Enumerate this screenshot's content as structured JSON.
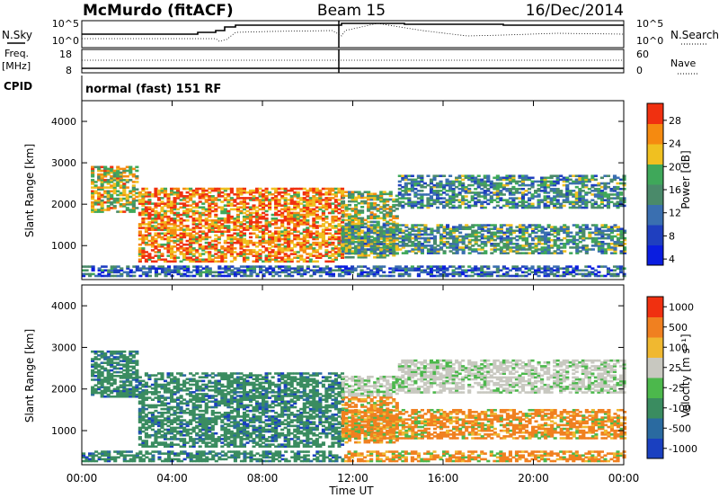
{
  "header": {
    "station": "McMurdo (fitACF)",
    "beam": "Beam 15",
    "date": "16/Dec/2014"
  },
  "noise_panel": {
    "left_label": "N.Sky",
    "right_label": "N.Search",
    "left_ticks": [
      "10^5",
      "10^0"
    ],
    "right_ticks": [
      "10^5",
      "10^0"
    ]
  },
  "freq_panel": {
    "left_label_line1": "Freq.",
    "left_label_line2": "[MHz]",
    "left_ticks": [
      "18",
      "8"
    ],
    "right_ticks": [
      "60",
      "0"
    ],
    "right_label": "Nave"
  },
  "cpid_panel": {
    "label": "CPID",
    "value": "normal (fast) 151 RF"
  },
  "chart_data": [
    {
      "type": "heatmap",
      "name": "power",
      "ylabel": "Slant Range [km]",
      "yticks": [
        "4000",
        "3000",
        "2000",
        "1000"
      ],
      "ylim": [
        180,
        4500
      ],
      "colorbar_label": "Power [dB]",
      "colorbar_ticks": [
        "28",
        "24",
        "20",
        "16",
        "12",
        "8",
        "4"
      ],
      "colorbar_range": [
        0,
        30
      ],
      "colors": [
        "#0a1de0",
        "#1f3fbf",
        "#3a6fb0",
        "#4a8a6a",
        "#3fa85a",
        "#f0c020",
        "#f58a10",
        "#f03010"
      ]
    },
    {
      "type": "heatmap",
      "name": "velocity",
      "ylabel": "Slant Range [km]",
      "yticks": [
        "4000",
        "3000",
        "2000",
        "1000"
      ],
      "ylim": [
        180,
        4500
      ],
      "colorbar_label": "Velocity [m s⁻¹]",
      "colorbar_ticks": [
        "1000",
        "500",
        "100",
        "25",
        "-25",
        "-100",
        "-500",
        "-1000"
      ],
      "colors": [
        "#1a40c0",
        "#2a6aa0",
        "#3a8c60",
        "#4cb84c",
        "#c8c8c0",
        "#f0b830",
        "#f08020",
        "#f03010"
      ],
      "xlabel": "Time UT",
      "xticks": [
        "00:00",
        "04:00",
        "08:00",
        "12:00",
        "16:00",
        "20:00",
        "00:00"
      ],
      "xlim": [
        0,
        24
      ]
    }
  ]
}
